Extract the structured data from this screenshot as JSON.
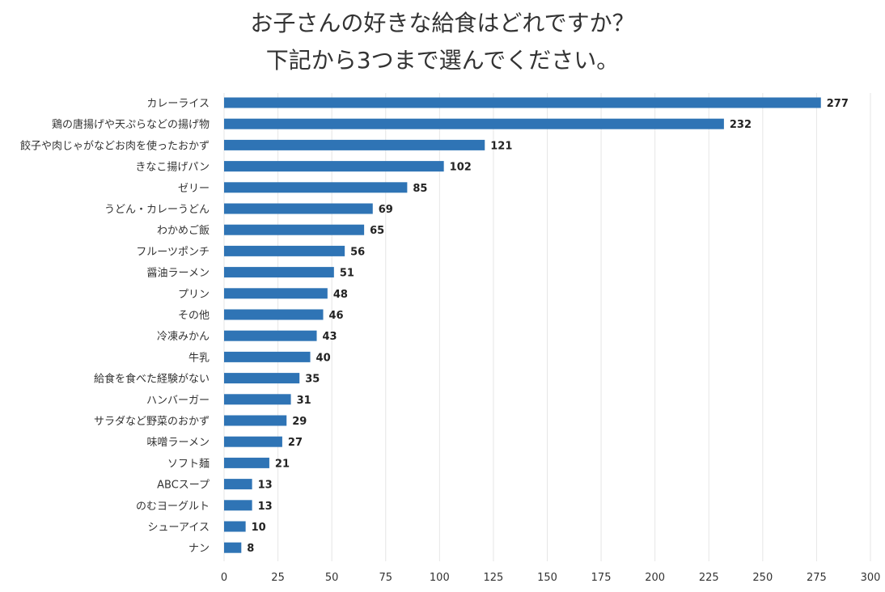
{
  "title_lines": [
    "お子さんの好きな給食はどれですか？",
    "下記から3つまで選んでください。"
  ],
  "colors": {
    "bar": "#2f74b5",
    "grid": "#e6e6e6",
    "text": "#333333"
  },
  "chart_data": {
    "type": "bar",
    "orientation": "horizontal",
    "title": "お子さんの好きな給食はどれですか？ 下記から3つまで選んでください。",
    "categories": [
      "カレーライス",
      "鶏の唐揚げや天ぷらなどの揚げ物",
      "餃子や肉じゃがなどお肉を使ったおかず",
      "きなこ揚げパン",
      "ゼリー",
      "うどん・カレーうどん",
      "わかめご飯",
      "フルーツポンチ",
      "醤油ラーメン",
      "プリン",
      "その他",
      "冷凍みかん",
      "牛乳",
      "給食を食べた経験がない",
      "ハンバーガー",
      "サラダなど野菜のおかず",
      "味噌ラーメン",
      "ソフト麺",
      "ABCスープ",
      "のむヨーグルト",
      "シューアイス",
      "ナン"
    ],
    "values": [
      277,
      232,
      121,
      102,
      85,
      69,
      65,
      56,
      51,
      48,
      46,
      43,
      40,
      35,
      31,
      29,
      27,
      21,
      13,
      13,
      10,
      8
    ],
    "x_ticks": [
      0,
      25,
      50,
      75,
      100,
      125,
      150,
      175,
      200,
      225,
      250,
      275,
      300
    ],
    "xlim": [
      0,
      300
    ],
    "grid": true,
    "legend": "none"
  }
}
